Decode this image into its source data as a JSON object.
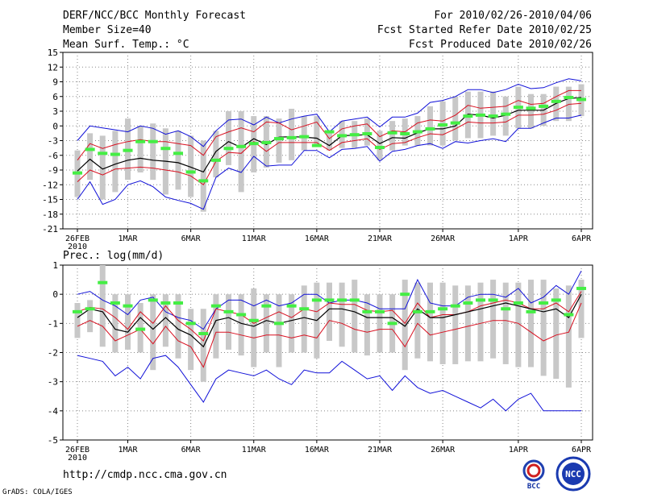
{
  "header": {
    "title": "DERF/NCC/BCC Monthly Forecast",
    "member_size": "Member Size=40",
    "variable": "Mean Surf. Temp.: °C",
    "period": "For 2010/02/26-2010/04/06",
    "started": "Fcst Started Refer Date 2010/02/25",
    "produced": "Fcst Produced Date 2010/02/26"
  },
  "footer": {
    "url": "http://cmdp.ncc.cma.gov.cn",
    "grads": "GrADS: COLA/IGES",
    "logo_bcc_text": "BCC",
    "logo_ncc_text": "NCC"
  },
  "colors": {
    "bar": "#c8c8c8",
    "envelope": "#1010d8",
    "spread": "#d81020",
    "mean": "#000000",
    "mark": "#44ee44",
    "grid": "#888888"
  },
  "chart_data": [
    {
      "type": "line",
      "title": "Mean Surf. Temp.: °C",
      "ylim": [
        -21,
        15
      ],
      "yticks": [
        "15",
        "12",
        "9",
        "6",
        "3",
        "0",
        "-3",
        "-6",
        "-9",
        "-12",
        "-15",
        "-18",
        "-21"
      ],
      "xtick_labels": [
        "26FEB",
        "1MAR",
        "6MAR",
        "11MAR",
        "16MAR",
        "21MAR",
        "26MAR",
        "1APR",
        "6APR"
      ],
      "xtick_index": [
        0,
        4,
        9,
        14,
        19,
        24,
        29,
        35,
        40
      ],
      "x_sublabel": "2010",
      "n_days": 41,
      "series": [
        {
          "name": "max",
          "values": [
            -3,
            0,
            -0.4,
            -0.8,
            -1.2,
            0,
            -0.5,
            -1.7,
            -1,
            -2.2,
            -4.2,
            -1,
            1.2,
            1.4,
            0.2,
            1.8,
            0.6,
            1.4,
            2,
            2.4,
            -1.2,
            1,
            1.4,
            1.8,
            -0.2,
            1.8,
            1.8,
            2.6,
            4.8,
            5.2,
            6,
            7.4,
            7.4,
            6.8,
            7.4,
            8.5,
            7.6,
            7.8,
            8.8,
            9.6,
            9.2
          ]
        },
        {
          "name": "upper",
          "values": [
            -7,
            -3.6,
            -4.6,
            -3.8,
            -3.2,
            -2.8,
            -3.2,
            -3.2,
            -3.6,
            -4,
            -6,
            -2.2,
            -1.2,
            -0.4,
            -1.2,
            0.8,
            0.6,
            -0.8,
            0,
            0.8,
            -2.6,
            -0.6,
            0,
            0.4,
            -2.2,
            -1,
            -1.2,
            0.6,
            1.2,
            1,
            2.2,
            4.2,
            3.6,
            3.8,
            4,
            5.2,
            4.4,
            4.6,
            6,
            7.2,
            7.2
          ]
        },
        {
          "name": "mean",
          "values": [
            -9.2,
            -6.8,
            -8.8,
            -7.8,
            -7,
            -6.6,
            -7,
            -7.2,
            -7.5,
            -8.4,
            -9.4,
            -5.2,
            -3.2,
            -4.4,
            -2.6,
            -3.8,
            -2.3,
            -2.2,
            -2.3,
            -2.5,
            -4,
            -2,
            -1.9,
            -1.8,
            -3.6,
            -2.4,
            -2.5,
            -1.4,
            -0.6,
            -0.6,
            0,
            2.4,
            2.2,
            1.6,
            2.2,
            3.2,
            3.2,
            3.2,
            4.6,
            5.6,
            5.8
          ]
        },
        {
          "name": "lower",
          "values": [
            -11.4,
            -9,
            -10,
            -8.8,
            -8.6,
            -8.4,
            -8.6,
            -9,
            -9.4,
            -10.2,
            -12,
            -7.2,
            -5.4,
            -5.6,
            -3.2,
            -5.2,
            -3.4,
            -3.4,
            -3.4,
            -3.4,
            -5,
            -3.4,
            -3,
            -2.6,
            -4.8,
            -3.6,
            -3.4,
            -2.4,
            -1.6,
            -1.8,
            -0.6,
            0.8,
            0.6,
            0.6,
            0.8,
            2.2,
            2.2,
            2.4,
            3.2,
            4.4,
            4.6
          ]
        },
        {
          "name": "min",
          "values": [
            -15,
            -11.4,
            -16,
            -15,
            -12,
            -11.2,
            -12.4,
            -14.5,
            -15.2,
            -15.8,
            -17,
            -10.5,
            -8.6,
            -9.5,
            -6.2,
            -8.2,
            -8,
            -8,
            -5,
            -5,
            -6.5,
            -4.8,
            -4.6,
            -4.2,
            -7.2,
            -5.2,
            -4.8,
            -4,
            -3.6,
            -4.6,
            -3.2,
            -3.5,
            -3,
            -2.6,
            -3.2,
            -0.5,
            -0.5,
            0.6,
            1.6,
            1.6,
            2.2
          ]
        },
        {
          "name": "observed_mark",
          "values": [
            -9.6,
            -4.8,
            -5.6,
            -5.8,
            -5,
            -3.2,
            -3.2,
            -4.6,
            -5.6,
            -9.4,
            -11.2,
            -7,
            -4.6,
            -4.2,
            -3.6,
            -3.4,
            -2.6,
            -2.4,
            -2.2,
            -4,
            -1.2,
            -2,
            -1.8,
            -1.6,
            -4.4,
            -1.4,
            -1.6,
            -1.2,
            -0.6,
            0.2,
            0.6,
            2,
            2.2,
            2,
            2.4,
            3.8,
            3.6,
            4,
            5,
            5.8,
            5.4
          ]
        },
        {
          "name": "bar_top",
          "values": [
            -5,
            -1.5,
            -2,
            -1,
            1.5,
            0,
            0.5,
            -0.5,
            -1,
            -2,
            -3,
            -1,
            3,
            3,
            2,
            2,
            1.5,
            3.5,
            2,
            2,
            -1,
            1,
            1,
            1.5,
            -1,
            1,
            1.5,
            2,
            4,
            5,
            6,
            7,
            7,
            7,
            6,
            8,
            6.5,
            6.5,
            8,
            8,
            8.5
          ]
        },
        {
          "name": "bar_bottom",
          "values": [
            -14.5,
            -11,
            -15,
            -13.5,
            -11,
            -9.5,
            -11,
            -14,
            -13,
            -14.5,
            -17.5,
            -10.5,
            -8,
            -13.5,
            -9.5,
            -8.5,
            -7.5,
            -7,
            -5,
            -4,
            -5,
            -4.5,
            -4.5,
            -4,
            -7,
            -5,
            -4,
            -4,
            -4,
            -4,
            -3,
            -2.5,
            -2.5,
            -2,
            -2,
            -0.5,
            -0.5,
            0,
            1,
            1,
            2
          ]
        }
      ]
    },
    {
      "type": "line",
      "title": "Prec.: log(mm/d)",
      "ylim": [
        -5,
        1
      ],
      "yticks": [
        "1",
        "0",
        "-1",
        "-2",
        "-3",
        "-4",
        "-5"
      ],
      "xtick_labels": [
        "26FEB",
        "1MAR",
        "6MAR",
        "11MAR",
        "16MAR",
        "21MAR",
        "26MAR",
        "1APR",
        "6APR"
      ],
      "xtick_index": [
        0,
        4,
        9,
        14,
        19,
        24,
        29,
        35,
        40
      ],
      "x_sublabel": "2010",
      "n_days": 41,
      "series": [
        {
          "name": "max",
          "values": [
            0,
            0.1,
            -0.2,
            -0.4,
            -0.7,
            -0.2,
            -0.1,
            -0.6,
            -0.8,
            -0.9,
            -1.2,
            -0.5,
            -0.2,
            -0.2,
            -0.4,
            -0.2,
            -0.4,
            -0.3,
            0,
            0,
            -0.3,
            -0.2,
            -0.2,
            -0.3,
            -0.5,
            -0.5,
            -0.5,
            0.5,
            -0.3,
            -0.4,
            -0.4,
            -0.1,
            0,
            0,
            -0.1,
            0.2,
            -0.3,
            -0.1,
            0.3,
            0,
            0.8
          ]
        },
        {
          "name": "upper",
          "values": [
            -0.6,
            -0.45,
            -0.5,
            -0.8,
            -1.2,
            -0.6,
            -1,
            -0.4,
            -0.9,
            -1.2,
            -1.6,
            -0.5,
            -0.6,
            -0.7,
            -1,
            -0.8,
            -0.6,
            -0.8,
            -0.5,
            -0.6,
            -0.3,
            -0.35,
            -0.35,
            -0.55,
            -0.6,
            -0.55,
            -1,
            -0.3,
            -0.8,
            -0.7,
            -0.7,
            -0.6,
            -0.4,
            -0.3,
            -0.2,
            -0.3,
            -0.5,
            -0.5,
            -0.3,
            -0.6,
            0.1
          ]
        },
        {
          "name": "mean",
          "values": [
            -0.8,
            -0.5,
            -0.6,
            -1.2,
            -1.3,
            -0.8,
            -1.2,
            -0.8,
            -1.2,
            -1.4,
            -1.8,
            -0.9,
            -0.8,
            -1,
            -1.1,
            -0.9,
            -1,
            -0.9,
            -0.8,
            -0.9,
            -0.5,
            -0.5,
            -0.6,
            -0.8,
            -0.8,
            -0.8,
            -1.1,
            -0.5,
            -0.8,
            -0.8,
            -0.7,
            -0.6,
            -0.5,
            -0.4,
            -0.3,
            -0.4,
            -0.5,
            -0.6,
            -0.5,
            -0.8,
            0
          ]
        },
        {
          "name": "lower",
          "values": [
            -1.1,
            -0.9,
            -1.1,
            -1.6,
            -1.4,
            -1.2,
            -1.7,
            -1.1,
            -1.6,
            -1.8,
            -2.5,
            -1.3,
            -1.3,
            -1.4,
            -1.5,
            -1.4,
            -1.4,
            -1.5,
            -1.4,
            -1.5,
            -0.9,
            -1,
            -1.2,
            -1.3,
            -1.2,
            -1.2,
            -1.8,
            -1,
            -1.4,
            -1.3,
            -1.2,
            -1.1,
            -1,
            -0.9,
            -0.9,
            -1,
            -1.3,
            -1.6,
            -1.4,
            -1.3,
            -0.3
          ]
        },
        {
          "name": "min",
          "values": [
            -2.1,
            -2.2,
            -2.3,
            -2.8,
            -2.5,
            -2.9,
            -2.2,
            -2.1,
            -2.5,
            -3.1,
            -3.7,
            -2.9,
            -2.6,
            -2.7,
            -2.8,
            -2.6,
            -2.9,
            -3.1,
            -2.6,
            -2.7,
            -2.7,
            -2.3,
            -2.6,
            -2.9,
            -2.8,
            -3.3,
            -2.8,
            -3.2,
            -3.4,
            -3.3,
            -3.5,
            -3.7,
            -3.9,
            -3.6,
            -4,
            -3.6,
            -3.4,
            -4,
            -4,
            -4,
            -4
          ]
        },
        {
          "name": "observed_mark",
          "values": [
            -0.6,
            -0.5,
            0.4,
            -0.3,
            -0.4,
            -1.2,
            -0.2,
            -0.3,
            -0.3,
            -1,
            -1.35,
            -0.4,
            -0.6,
            -0.7,
            -0.9,
            -0.4,
            -1,
            -0.4,
            -0.5,
            -0.2,
            -0.2,
            -0.2,
            -0.2,
            -0.6,
            -0.6,
            -1,
            0,
            -0.6,
            -0.6,
            -0.5,
            -0.4,
            -0.3,
            -0.2,
            -0.2,
            -0.5,
            -0.3,
            -0.6,
            -0.3,
            -0.2,
            -0.7,
            0.2
          ]
        },
        {
          "name": "bar_top",
          "values": [
            -0.3,
            -0.2,
            1,
            0,
            0,
            -0.3,
            0,
            0,
            0,
            -0.5,
            -0.5,
            0,
            0,
            0,
            0.2,
            0,
            0,
            0,
            0.3,
            0.4,
            0.4,
            0.4,
            0.5,
            0,
            0,
            0,
            0.5,
            0.4,
            0.4,
            0.4,
            0.3,
            0.3,
            0.4,
            0.5,
            0.4,
            0.4,
            0.5,
            0.5,
            0.2,
            0.3,
            0.5
          ]
        },
        {
          "name": "bar_bottom",
          "values": [
            -1.5,
            -1.3,
            -1.8,
            -2,
            -1.9,
            -2,
            -2.6,
            -1.8,
            -2.2,
            -2.6,
            -3,
            -2.2,
            -1.9,
            -2.1,
            -2.5,
            -2,
            -2.5,
            -2,
            -2,
            -2.2,
            -1.6,
            -1.8,
            -2,
            -2.1,
            -2,
            -2,
            -2.6,
            -2.2,
            -2.3,
            -2.4,
            -2.4,
            -2.3,
            -2.3,
            -2.2,
            -2.4,
            -2.5,
            -2.5,
            -2.8,
            -2.9,
            -3.2,
            -1.5
          ]
        }
      ]
    }
  ]
}
